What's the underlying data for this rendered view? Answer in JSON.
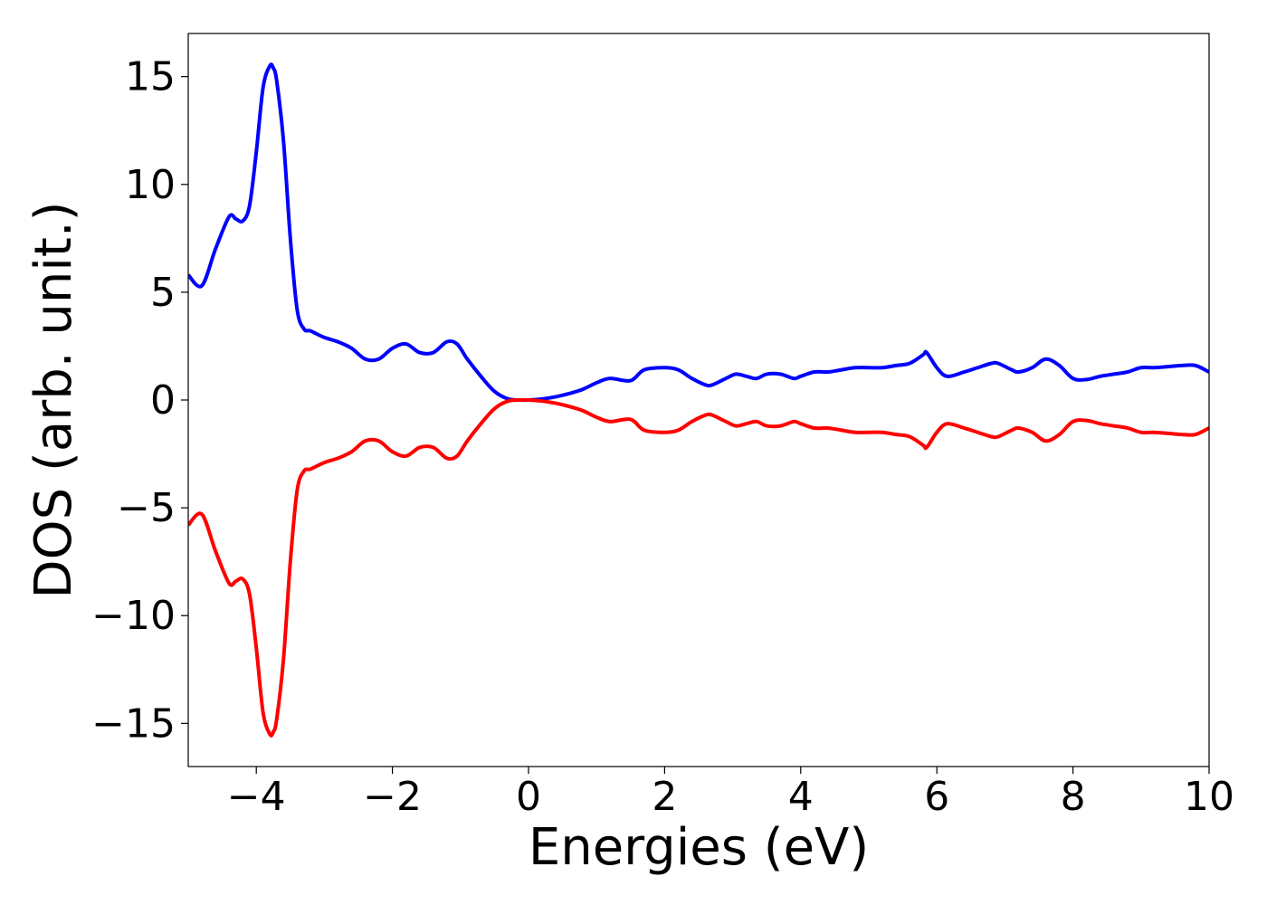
{
  "chart_data": {
    "type": "line",
    "title": "",
    "xlabel": "Energies (eV)",
    "ylabel": "DOS (arb. unit.)",
    "xlim": [
      -5,
      10
    ],
    "ylim": [
      -17,
      17
    ],
    "grid": false,
    "legend": "none",
    "x_ticks": [
      -4,
      -2,
      0,
      2,
      4,
      6,
      8,
      10
    ],
    "x_tick_labels": [
      "−4",
      "−2",
      "0",
      "2",
      "4",
      "6",
      "8",
      "10"
    ],
    "y_ticks": [
      15,
      10,
      5,
      0,
      -5,
      -10,
      -15
    ],
    "y_tick_labels": [
      "15",
      "10",
      "5",
      "0",
      "−5",
      "−10",
      "−15"
    ],
    "x": [
      -5.0,
      -4.8,
      -4.6,
      -4.4,
      -4.3,
      -4.2,
      -4.1,
      -4.0,
      -3.9,
      -3.8,
      -3.75,
      -3.7,
      -3.6,
      -3.5,
      -3.4,
      -3.3,
      -3.2,
      -3.0,
      -2.8,
      -2.6,
      -2.4,
      -2.2,
      -2.0,
      -1.8,
      -1.6,
      -1.4,
      -1.2,
      -1.05,
      -0.9,
      -0.7,
      -0.5,
      -0.3,
      -0.1,
      0.0,
      0.2,
      0.4,
      0.6,
      0.8,
      1.0,
      1.2,
      1.5,
      1.7,
      2.0,
      2.2,
      2.4,
      2.6,
      2.7,
      2.9,
      3.05,
      3.2,
      3.35,
      3.5,
      3.7,
      3.9,
      4.0,
      4.2,
      4.4,
      4.6,
      4.8,
      5.0,
      5.2,
      5.4,
      5.6,
      5.8,
      5.85,
      6.0,
      6.15,
      6.4,
      6.6,
      6.8,
      6.9,
      7.1,
      7.2,
      7.4,
      7.6,
      7.8,
      8.0,
      8.2,
      8.4,
      8.6,
      8.8,
      9.0,
      9.2,
      9.4,
      9.6,
      9.8,
      10.0
    ],
    "series": [
      {
        "color": "#0000ff",
        "values": [
          5.8,
          5.3,
          7.0,
          8.5,
          8.4,
          8.3,
          9.0,
          11.5,
          14.5,
          15.5,
          15.4,
          14.8,
          12.0,
          7.5,
          4.2,
          3.3,
          3.2,
          2.9,
          2.7,
          2.4,
          1.9,
          1.9,
          2.4,
          2.6,
          2.2,
          2.2,
          2.7,
          2.6,
          1.9,
          1.1,
          0.4,
          0.05,
          0.0,
          0.0,
          0.05,
          0.15,
          0.3,
          0.5,
          0.8,
          1.0,
          0.9,
          1.4,
          1.5,
          1.4,
          1.0,
          0.7,
          0.7,
          1.0,
          1.2,
          1.1,
          1.0,
          1.2,
          1.2,
          1.0,
          1.1,
          1.3,
          1.3,
          1.4,
          1.5,
          1.5,
          1.5,
          1.6,
          1.7,
          2.1,
          2.2,
          1.5,
          1.1,
          1.3,
          1.5,
          1.7,
          1.7,
          1.4,
          1.3,
          1.5,
          1.9,
          1.6,
          1.0,
          0.95,
          1.1,
          1.2,
          1.3,
          1.5,
          1.5,
          1.55,
          1.6,
          1.6,
          1.3
        ]
      },
      {
        "color": "#ff0000",
        "values": [
          -5.8,
          -5.3,
          -7.0,
          -8.5,
          -8.4,
          -8.3,
          -9.0,
          -11.5,
          -14.5,
          -15.5,
          -15.4,
          -14.8,
          -12.0,
          -7.5,
          -4.2,
          -3.3,
          -3.2,
          -2.9,
          -2.7,
          -2.4,
          -1.9,
          -1.9,
          -2.4,
          -2.6,
          -2.2,
          -2.2,
          -2.7,
          -2.6,
          -1.9,
          -1.1,
          -0.4,
          -0.05,
          0.0,
          0.0,
          -0.05,
          -0.15,
          -0.3,
          -0.5,
          -0.8,
          -1.0,
          -0.9,
          -1.4,
          -1.5,
          -1.4,
          -1.0,
          -0.7,
          -0.7,
          -1.0,
          -1.2,
          -1.1,
          -1.0,
          -1.2,
          -1.2,
          -1.0,
          -1.1,
          -1.3,
          -1.3,
          -1.4,
          -1.5,
          -1.5,
          -1.5,
          -1.6,
          -1.7,
          -2.1,
          -2.2,
          -1.5,
          -1.1,
          -1.3,
          -1.5,
          -1.7,
          -1.7,
          -1.4,
          -1.3,
          -1.5,
          -1.9,
          -1.6,
          -1.0,
          -0.95,
          -1.1,
          -1.2,
          -1.3,
          -1.5,
          -1.5,
          -1.55,
          -1.6,
          -1.6,
          -1.3
        ]
      }
    ]
  }
}
